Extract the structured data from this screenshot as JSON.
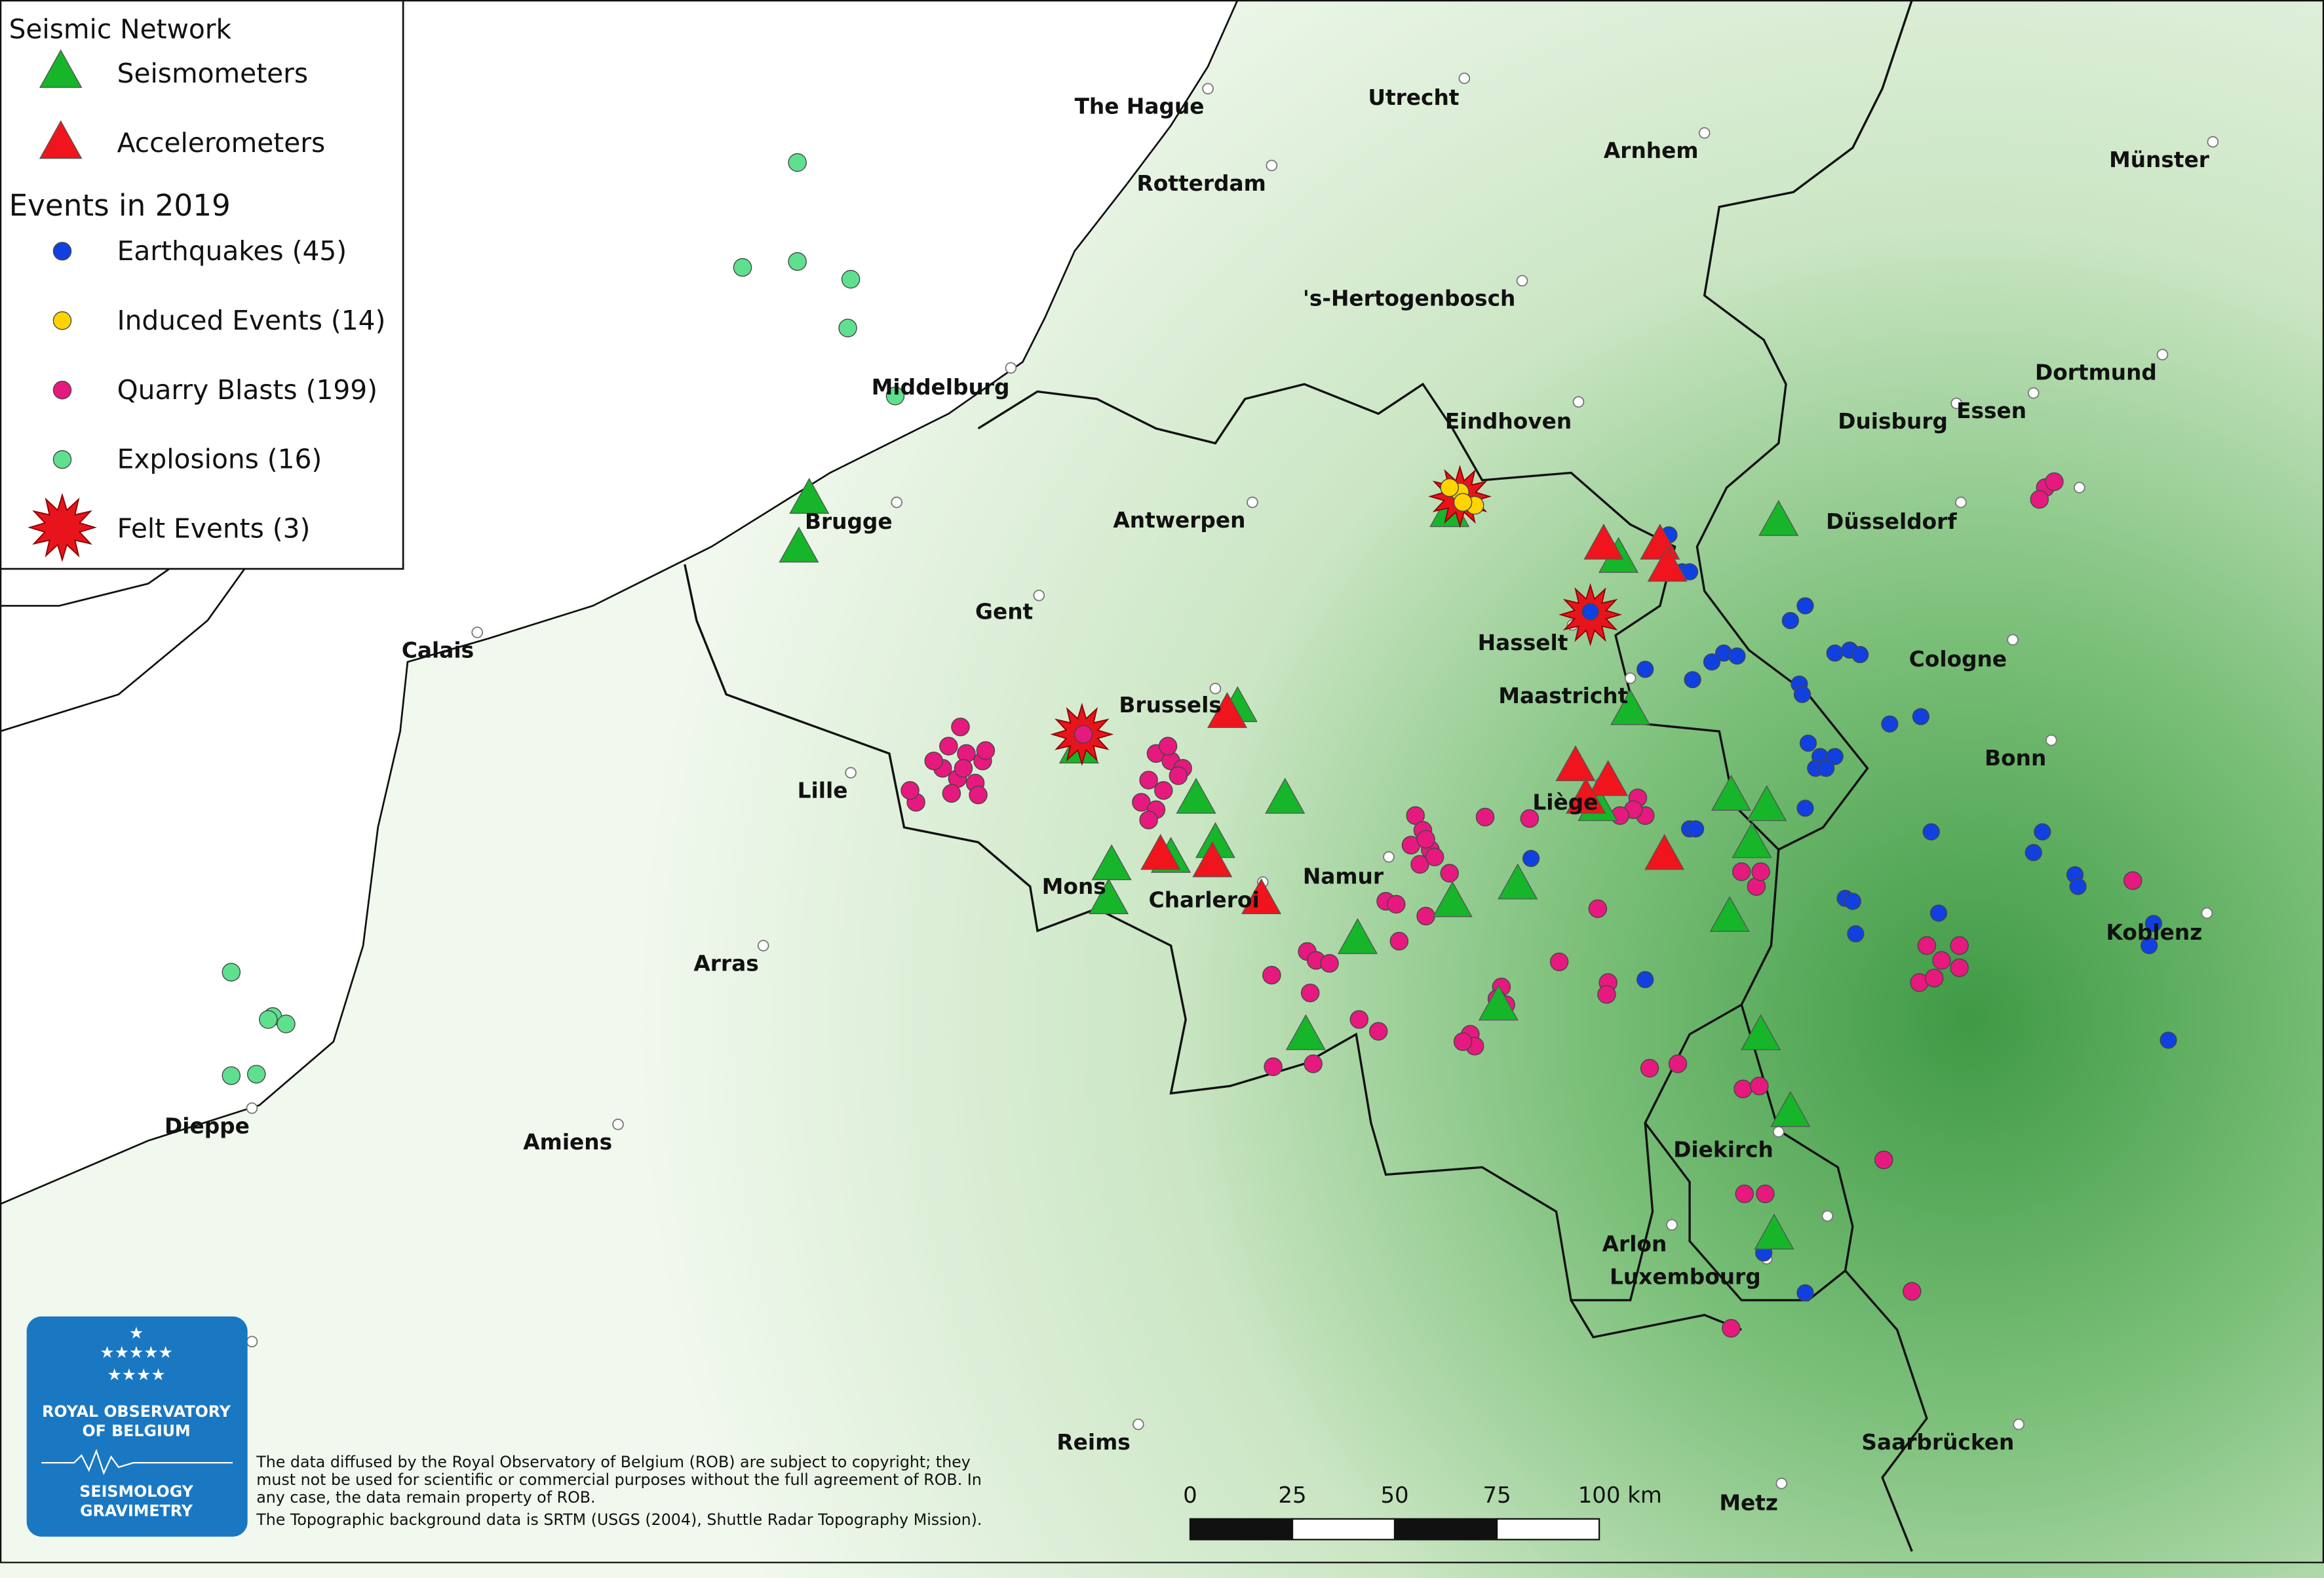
{
  "legend": {
    "network_title": "Seismic Network",
    "network_items": [
      "Seismometers",
      "Accelerometers"
    ],
    "events_title": "Events in 2019",
    "event_items": [
      "Earthquakes (45)",
      "Induced Events (14)",
      "Quarry Blasts (199)",
      "Explosions (16)",
      "Felt Events (3)"
    ]
  },
  "cities": [
    "The Hague",
    "Utrecht",
    "Arnhem",
    "Münster",
    "Rotterdam",
    "'s-Hertogenbosch",
    "Middelburg",
    "Eindhoven",
    "Dortmund",
    "Duisburg",
    "Essen",
    "Brugge",
    "Antwerpen",
    "Düsseldorf",
    "Gent",
    "Calais",
    "Hasselt",
    "Cologne",
    "Maastricht",
    "Brussels",
    "Bonn",
    "Lille",
    "Liège",
    "Namur",
    "Mons",
    "Charleroi",
    "Koblenz",
    "Arras",
    "Dieppe",
    "Amiens",
    "Diekirch",
    "Arlon",
    "Luxembourg",
    "Saarbrücken",
    "Reims",
    "Metz"
  ],
  "scale_bar": {
    "labels": [
      "0",
      "25",
      "50",
      "75",
      "100 km"
    ]
  },
  "disclaimer": [
    "The data diffused by the Royal Observatory of Belgium (ROB) are subject to copyright; they",
    "must not be used for scientific or commercial purposes without the full agreement of ROB. In",
    "any case, the data remain property of ROB.",
    "The Topographic background data is SRTM (USGS (2004), Shuttle Radar Topography Mission)."
  ],
  "logo": {
    "lines": [
      "ROYAL OBSERVATORY",
      "OF BELGIUM",
      "SEISMOLOGY",
      "GRAVIMETRY"
    ]
  }
}
